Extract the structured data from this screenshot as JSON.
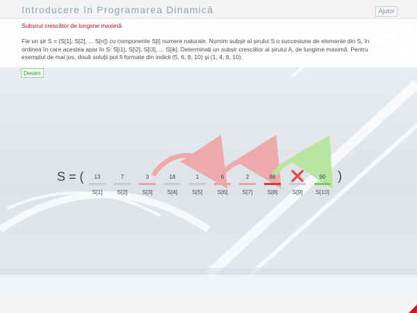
{
  "window": {
    "title": "Introducere în Programarea Dinamică",
    "help_label": "Ajutor"
  },
  "problem": {
    "title": "Subșirul crescător de lungime maximă",
    "description": "Fie un șir S = (S[1], S[2], ... S[n]) cu componente S[i] numere naturale. Numim subșir al șirului S o succesiune de elemente din S, în ordinea în care acestea apar în S: S[i1], S[i2], S[i3], ... S[ik]. Determinați un subșir crescător al șirului A, de lungime maximă. Pentru exemplul de mai jos, două soluții pot fi formate din indicii (5, 6, 8, 10) și (1, 4, 8, 10)."
  },
  "toolbar": {
    "draw_label": "Desen"
  },
  "sequence": {
    "prefix": "S = (",
    "suffix": ")",
    "items": [
      {
        "value": "13",
        "index": "S[1]",
        "state": "normal"
      },
      {
        "value": "7",
        "index": "S[2]",
        "state": "normal"
      },
      {
        "value": "3",
        "index": "S[3]",
        "state": "light-red"
      },
      {
        "value": "18",
        "index": "S[4]",
        "state": "normal"
      },
      {
        "value": "1",
        "index": "S[5]",
        "state": "normal"
      },
      {
        "value": "6",
        "index": "S[6]",
        "state": "light-red"
      },
      {
        "value": "2",
        "index": "S[7]",
        "state": "light-red"
      },
      {
        "value": "88",
        "index": "S[8]",
        "state": "red"
      },
      {
        "value": "",
        "index": "S[9]",
        "state": "crossed"
      },
      {
        "value": "90",
        "index": "S[10]",
        "state": "green"
      }
    ]
  },
  "colors": {
    "accent_red": "#b0161c",
    "bar_normal": "#c9cdd1",
    "bar_light_red": "#e8a3a3",
    "bar_red": "#d83a3a",
    "bar_green": "#7fce52",
    "arrow_red": "#eeaaaa",
    "arrow_green": "#b8e6a0",
    "cross_red": "#e05050"
  }
}
